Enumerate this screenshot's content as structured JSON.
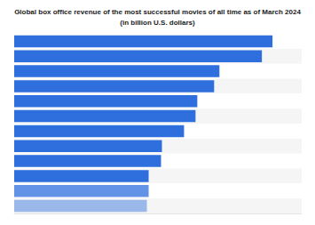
{
  "chart_data": {
    "type": "bar",
    "title": "Global box office revenue of the most successful movies of all time as of March 2024",
    "subtitle": "(in billion U.S. dollars)",
    "orientation": "horizontal",
    "categories": [
      null,
      null,
      null,
      null,
      null,
      null,
      null,
      null,
      null,
      null,
      null,
      null
    ],
    "values": [
      2.92,
      2.8,
      2.32,
      2.26,
      2.07,
      2.05,
      1.92,
      1.67,
      1.66,
      1.52,
      1.52,
      1.5
    ],
    "color": "#2f6fdd",
    "xlim": [
      0,
      3.25
    ],
    "grid": false,
    "tick_labels": false
  }
}
